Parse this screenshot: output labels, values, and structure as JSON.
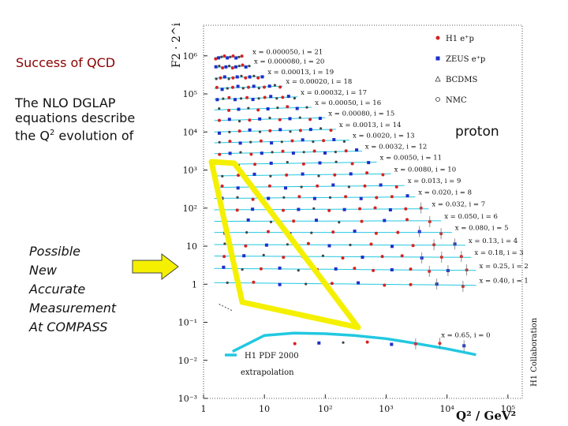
{
  "slide": {
    "title": "Success of QCD",
    "description_line1": "The NLO DGLAP",
    "description_line2": "equations describe",
    "description_line3_pre": "the Q",
    "description_line3_sup": "2",
    "description_line3_post": " evolution of",
    "proton_label": "proton",
    "compass_lines": [
      "Possible",
      "New",
      "Accurate",
      "Measurement",
      "At COMPASS"
    ],
    "arrow_color": "#f4f000",
    "highlight_color": "#f4f000",
    "title_color": "#8b0000"
  },
  "chart_data": {
    "type": "scatter",
    "title": "",
    "ylabel": "F2 · 2^i",
    "xlabel": "Q² / GeV²",
    "xscale": "log",
    "yscale": "log",
    "xlim": [
      1,
      100000
    ],
    "ylim": [
      0.001,
      10000000
    ],
    "x_ticks": [
      "1",
      "10",
      "10²",
      "10³",
      "10⁴",
      "10⁵"
    ],
    "y_ticks": [
      "10⁶",
      "10⁵",
      "10⁴",
      "10³",
      "10²",
      "10",
      "1",
      "10⁻¹",
      "10⁻²",
      "10⁻³"
    ],
    "legend": [
      {
        "name": "H1 e⁺p",
        "color": "#d62222",
        "marker": "circle"
      },
      {
        "name": "ZEUS e⁺p",
        "color": "#1d2fc9",
        "marker": "square"
      },
      {
        "name": "BCDMS",
        "color": "#333333",
        "marker": "triangle"
      },
      {
        "name": "NMC",
        "color": "#333333",
        "marker": "open-circle"
      }
    ],
    "bins": [
      {
        "label": "x = 0.000050, i = 21",
        "x_range": [
          1.5,
          4.5
        ],
        "y_level": 900000
      },
      {
        "label": "x = 0.000080, i = 20",
        "x_range": [
          1.5,
          6
        ],
        "y_level": 500000
      },
      {
        "label": "x = 0.00013, i = 19",
        "x_range": [
          1.5,
          10
        ],
        "y_level": 260000
      },
      {
        "label": "x = 0.00020, i = 18",
        "x_range": [
          1.5,
          20
        ],
        "y_level": 140000
      },
      {
        "label": "x = 0.00032, i = 17",
        "x_range": [
          1.5,
          35
        ],
        "y_level": 72000
      },
      {
        "label": "x = 0.00050, i = 16",
        "x_range": [
          1.5,
          60
        ],
        "y_level": 38000
      },
      {
        "label": "x = 0.00080, i = 15",
        "x_range": [
          1.5,
          100
        ],
        "y_level": 20000
      },
      {
        "label": "x = 0.0013, i = 14",
        "x_range": [
          1.5,
          150
        ],
        "y_level": 10000
      },
      {
        "label": "x = 0.0020, i = 13",
        "x_range": [
          1.5,
          250
        ],
        "y_level": 5200
      },
      {
        "label": "x = 0.0032, i = 12",
        "x_range": [
          1.5,
          400
        ],
        "y_level": 2700
      },
      {
        "label": "x = 0.0050, i = 11",
        "x_range": [
          1.5,
          700
        ],
        "y_level": 1400
      },
      {
        "label": "x = 0.0080, i = 10",
        "x_range": [
          1.5,
          1200
        ],
        "y_level": 700
      },
      {
        "label": "x = 0.013, i = 9",
        "x_range": [
          1.5,
          2000
        ],
        "y_level": 350
      },
      {
        "label": "x = 0.020, i = 8",
        "x_range": [
          1.5,
          3000
        ],
        "y_level": 180
      },
      {
        "label": "x = 0.032, i = 7",
        "x_range": [
          1.5,
          5000
        ],
        "y_level": 90
      },
      {
        "label": "x = 0.050, i = 6",
        "x_range": [
          1.5,
          8000
        ],
        "y_level": 45
      },
      {
        "label": "x = 0.080, i = 5",
        "x_range": [
          1.5,
          12000
        ],
        "y_level": 23
      },
      {
        "label": "x = 0.13, i = 4",
        "x_range": [
          1.5,
          20000
        ],
        "y_level": 11
      },
      {
        "label": "x = 0.18, i = 3",
        "x_range": [
          1.5,
          25000
        ],
        "y_level": 5.5
      },
      {
        "label": "x = 0.25, i = 2",
        "x_range": [
          1.5,
          30000
        ],
        "y_level": 2.6
      },
      {
        "label": "x = 0.40, i = 1",
        "x_range": [
          1.5,
          30000
        ],
        "y_level": 1.1
      },
      {
        "label": "x = 0.65, i = 0",
        "x_range": [
          20,
          30000
        ],
        "y_level": 0.03
      }
    ],
    "pdf_curve": {
      "label": "H1 PDF 2000",
      "color": "#22c8e0",
      "x": [
        3,
        10,
        30,
        100,
        300,
        1000,
        3000,
        10000,
        30000
      ],
      "y": [
        0.017,
        0.045,
        0.052,
        0.05,
        0.045,
        0.037,
        0.028,
        0.02,
        0.014
      ]
    },
    "extrapolation_label": "extrapolation",
    "collaboration_label": "H1 Collaboration",
    "highlight_region_q2": [
      [
        1.5,
        0.001
      ],
      [
        3.5,
        0.0006
      ],
      [
        300,
        0.1
      ],
      [
        400,
        0.07
      ]
    ]
  }
}
